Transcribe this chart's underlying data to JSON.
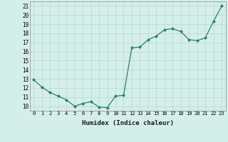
{
  "x": [
    0,
    1,
    2,
    3,
    4,
    5,
    6,
    7,
    8,
    9,
    10,
    11,
    12,
    13,
    14,
    15,
    16,
    17,
    18,
    19,
    20,
    21,
    22,
    23
  ],
  "y": [
    12.9,
    12.1,
    11.5,
    11.1,
    10.7,
    10.0,
    10.3,
    10.5,
    9.9,
    9.85,
    11.1,
    11.2,
    16.4,
    16.5,
    17.3,
    17.7,
    18.4,
    18.5,
    18.2,
    17.3,
    17.2,
    17.5,
    19.3,
    21.0
  ],
  "line_color": "#2e7d6e",
  "marker_color": "#2e7d6e",
  "bg_color": "#d4eeea",
  "grid_color": "#b8d8d2",
  "xlabel": "Humidex (Indice chaleur)",
  "ylabel_ticks": [
    10,
    11,
    12,
    13,
    14,
    15,
    16,
    17,
    18,
    19,
    20,
    21
  ],
  "xlim": [
    -0.5,
    23.5
  ],
  "ylim": [
    9.5,
    21.5
  ]
}
